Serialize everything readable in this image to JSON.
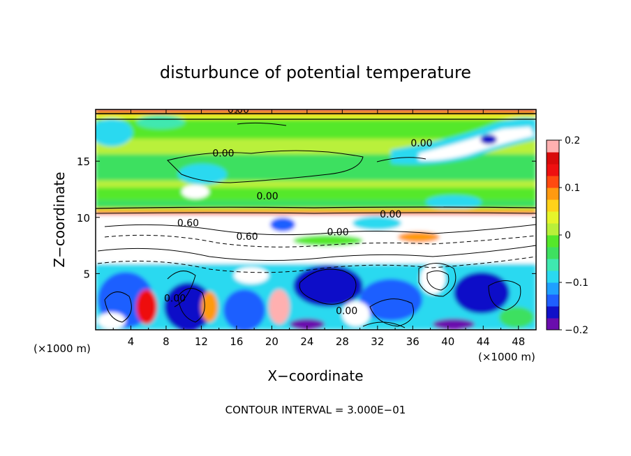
{
  "chart_data": {
    "type": "heatmap",
    "title": "disturbunce of potential temperature",
    "xlabel": "X−coordinate",
    "ylabel": "Z−coordinate",
    "x_unit_left": "(×1000 m)",
    "x_unit_right": "(×1000 m)",
    "footer": "CONTOUR INTERVAL = 3.000E−01",
    "xlim": [
      0,
      50
    ],
    "ylim": [
      0,
      19.6
    ],
    "x_ticks": [
      4,
      8,
      12,
      16,
      20,
      24,
      28,
      32,
      36,
      40,
      44,
      48
    ],
    "x_tick_labels": [
      "4",
      "8",
      "12",
      "16",
      "20",
      "24",
      "28",
      "32",
      "36",
      "40",
      "44",
      "48"
    ],
    "y_ticks": [
      5,
      10,
      15
    ],
    "y_tick_labels": [
      "5",
      "10",
      "15"
    ],
    "colorbar": {
      "min": -0.2,
      "max": 0.2,
      "ticks": [
        0.2,
        0.1,
        0,
        -0.1,
        -0.2
      ],
      "tick_labels": [
        "0.2",
        "0.1",
        "0",
        "−0.1",
        "−0.2"
      ],
      "colors": [
        "#6a0dad",
        "#1010c8",
        "#1f5fff",
        "#1fa0ff",
        "#2ad9f0",
        "#3fe8b0",
        "#3ee060",
        "#55e82a",
        "#b9f03a",
        "#e6f52a",
        "#ffd21a",
        "#ff9a10",
        "#ff4a10",
        "#ee1010",
        "#d80a0a",
        "#ffb0b0"
      ]
    },
    "contour_labels": [
      {
        "text": "0.00",
        "x": 16.2,
        "z": 19.3
      },
      {
        "text": "0.00",
        "x": 14.5,
        "z": 15.4
      },
      {
        "text": "0.00",
        "x": 37.0,
        "z": 16.3
      },
      {
        "text": "0.00",
        "x": 19.5,
        "z": 11.6
      },
      {
        "text": "0.00",
        "x": 33.5,
        "z": 10.0
      },
      {
        "text": "0.00",
        "x": 27.5,
        "z": 8.4
      },
      {
        "text": "0.60",
        "x": 17.2,
        "z": 8.0
      },
      {
        "text": "0.60",
        "x": 10.5,
        "z": 9.2
      },
      {
        "text": "0.00",
        "x": 9.0,
        "z": 2.5
      },
      {
        "text": "0.00",
        "x": 28.5,
        "z": 1.4
      }
    ],
    "grid": false,
    "legend": "colorbar-right"
  }
}
